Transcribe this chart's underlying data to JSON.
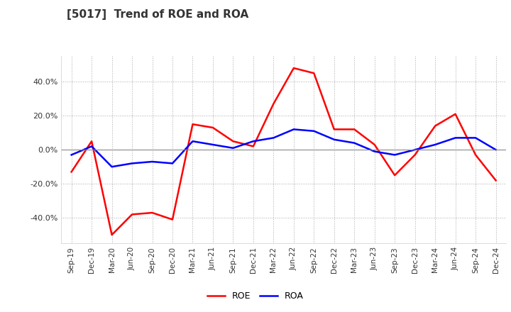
{
  "title": "[5017]  Trend of ROE and ROA",
  "x_labels": [
    "Sep-19",
    "Dec-19",
    "Mar-20",
    "Jun-20",
    "Sep-20",
    "Dec-20",
    "Mar-21",
    "Jun-21",
    "Sep-21",
    "Dec-21",
    "Mar-22",
    "Jun-22",
    "Sep-22",
    "Dec-22",
    "Mar-23",
    "Jun-23",
    "Sep-23",
    "Dec-23",
    "Mar-24",
    "Jun-24",
    "Sep-24",
    "Dec-24"
  ],
  "roe": [
    -13,
    5,
    -50,
    -38,
    -37,
    -41,
    15,
    13,
    5,
    2,
    27,
    48,
    45,
    12,
    12,
    3,
    -15,
    -3,
    14,
    21,
    -3,
    -18
  ],
  "roa": [
    -3,
    2,
    -10,
    -8,
    -7,
    -8,
    5,
    3,
    1,
    5,
    7,
    12,
    11,
    6,
    4,
    -1,
    -3,
    0,
    3,
    7,
    7,
    0
  ],
  "ylim": [
    -55,
    55
  ],
  "yticks": [
    -40,
    -20,
    0,
    20,
    40
  ],
  "roe_color": "#FF0000",
  "roa_color": "#0000FF",
  "bg_color": "#FFFFFF",
  "grid_color": "#AAAAAA",
  "title_fontsize": 11,
  "legend_labels": [
    "ROE",
    "ROA"
  ]
}
